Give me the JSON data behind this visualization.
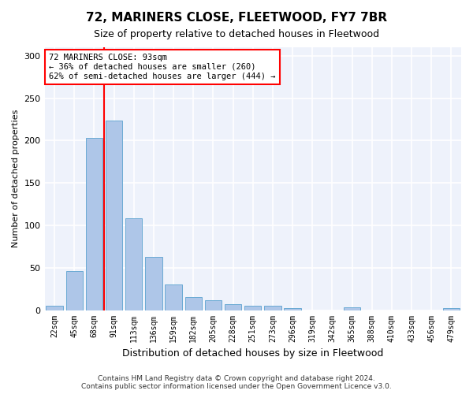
{
  "title": "72, MARINERS CLOSE, FLEETWOOD, FY7 7BR",
  "subtitle": "Size of property relative to detached houses in Fleetwood",
  "xlabel": "Distribution of detached houses by size in Fleetwood",
  "ylabel": "Number of detached properties",
  "categories": [
    "22sqm",
    "45sqm",
    "68sqm",
    "91sqm",
    "113sqm",
    "136sqm",
    "159sqm",
    "182sqm",
    "205sqm",
    "228sqm",
    "251sqm",
    "273sqm",
    "296sqm",
    "319sqm",
    "342sqm",
    "365sqm",
    "388sqm",
    "410sqm",
    "433sqm",
    "456sqm",
    "479sqm"
  ],
  "values": [
    5,
    46,
    203,
    224,
    108,
    63,
    30,
    15,
    12,
    7,
    5,
    5,
    2,
    0,
    0,
    3,
    0,
    0,
    0,
    0,
    2
  ],
  "bar_color": "#aec6e8",
  "bar_edge_color": "#6aaad4",
  "vline_x_index": 3,
  "vline_color": "red",
  "annotation_text": "72 MARINERS CLOSE: 93sqm\n← 36% of detached houses are smaller (260)\n62% of semi-detached houses are larger (444) →",
  "annotation_box_color": "white",
  "annotation_box_edge_color": "red",
  "ylim": [
    0,
    310
  ],
  "background_color": "#eef2fb",
  "grid_color": "white",
  "footer": "Contains HM Land Registry data © Crown copyright and database right 2024.\nContains public sector information licensed under the Open Government Licence v3.0."
}
